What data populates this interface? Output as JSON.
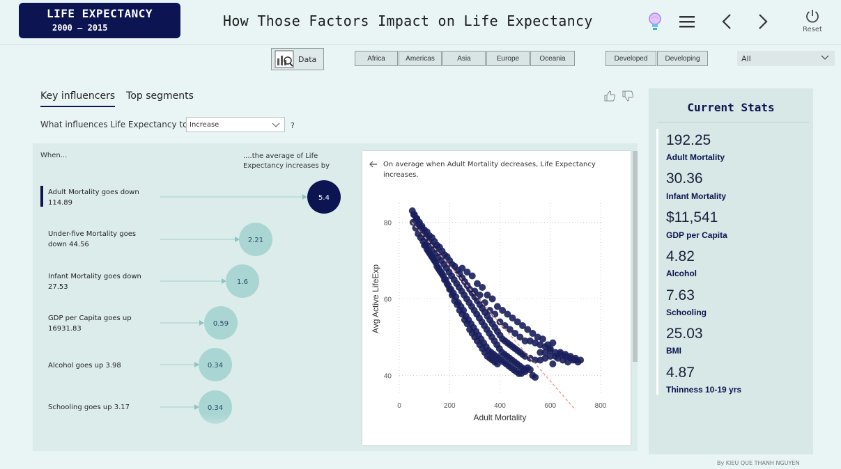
{
  "header": {
    "logo_title": "LIFE EXPECTANCY",
    "logo_years": "2000 – 2015",
    "title": "How Those Factors Impact on Life Expectancy",
    "reset_label": "Reset"
  },
  "filters": {
    "data_label": "Data",
    "regions": [
      "Africa",
      "Americas",
      "Asia",
      "Europe",
      "Oceania"
    ],
    "status": [
      "Developed",
      "Developing"
    ],
    "dropdown_value": "All"
  },
  "influencers": {
    "tabs": [
      "Key influencers",
      "Top segments"
    ],
    "question": "What influences Life Expectancy to",
    "question_value": "Increase",
    "question_mark": "?",
    "col_when": "When...",
    "col_avg": "....the average of Life Expectancy increases by",
    "items": [
      {
        "label": "Adult Mortality goes down 114.89",
        "value": "5.4"
      },
      {
        "label": "Under-five Mortality goes down 44.56",
        "value": "2.21"
      },
      {
        "label": "Infant Mortality goes down 27.53",
        "value": "1.6"
      },
      {
        "label": "GDP per Capita goes up 16931.83",
        "value": "0.59"
      },
      {
        "label": "Alcohol goes up 3.98",
        "value": "0.34"
      },
      {
        "label": "Schooling goes up 3.17",
        "value": "0.34"
      }
    ],
    "chart_desc": "On average when Adult Mortality decreases, Life Expectancy increases."
  },
  "chart_data": {
    "type": "scatter",
    "xlabel": "Adult Mortality",
    "ylabel": "Avg Active LifeExp",
    "xlim": [
      0,
      800
    ],
    "ylim": [
      35,
      85
    ],
    "xticks": [
      0,
      200,
      400,
      600,
      800
    ],
    "yticks": [
      40,
      60,
      80
    ],
    "grid": true,
    "trend": [
      [
        50,
        80
      ],
      [
        700,
        31
      ]
    ],
    "points": [
      [
        52,
        83
      ],
      [
        60,
        82
      ],
      [
        70,
        81
      ],
      [
        80,
        80
      ],
      [
        90,
        79
      ],
      [
        100,
        78
      ],
      [
        110,
        77.5
      ],
      [
        120,
        76.5
      ],
      [
        130,
        76
      ],
      [
        140,
        75
      ],
      [
        150,
        74
      ],
      [
        160,
        73.5
      ],
      [
        170,
        72.5
      ],
      [
        180,
        71.5
      ],
      [
        190,
        71
      ],
      [
        200,
        70
      ],
      [
        210,
        69
      ],
      [
        220,
        68.5
      ],
      [
        230,
        67.5
      ],
      [
        240,
        66.5
      ],
      [
        250,
        65.5
      ],
      [
        260,
        64.5
      ],
      [
        270,
        63.5
      ],
      [
        280,
        62.5
      ],
      [
        290,
        61.5
      ],
      [
        300,
        60.5
      ],
      [
        310,
        59.5
      ],
      [
        320,
        58.5
      ],
      [
        330,
        57.5
      ],
      [
        340,
        56.5
      ],
      [
        350,
        55.5
      ],
      [
        360,
        54.5
      ],
      [
        370,
        53.5
      ],
      [
        380,
        52.5
      ],
      [
        390,
        51.5
      ],
      [
        400,
        50.5
      ],
      [
        410,
        49.5
      ],
      [
        420,
        49
      ],
      [
        430,
        48.5
      ],
      [
        440,
        48
      ],
      [
        450,
        47.5
      ],
      [
        460,
        47
      ],
      [
        470,
        46.5
      ],
      [
        480,
        46
      ],
      [
        490,
        45.5
      ],
      [
        500,
        45
      ],
      [
        520,
        44.5
      ],
      [
        540,
        44
      ],
      [
        560,
        44
      ],
      [
        580,
        44.5
      ],
      [
        600,
        45
      ],
      [
        620,
        45
      ],
      [
        640,
        45.5
      ],
      [
        660,
        45
      ],
      [
        680,
        44.5
      ],
      [
        700,
        44
      ],
      [
        55,
        80
      ],
      [
        65,
        78.5
      ],
      [
        75,
        77
      ],
      [
        85,
        76
      ],
      [
        95,
        75
      ],
      [
        105,
        74
      ],
      [
        115,
        72.5
      ],
      [
        125,
        71.5
      ],
      [
        135,
        70.5
      ],
      [
        145,
        69.5
      ],
      [
        155,
        68
      ],
      [
        165,
        67
      ],
      [
        175,
        66
      ],
      [
        185,
        65
      ],
      [
        195,
        63.5
      ],
      [
        205,
        62.5
      ],
      [
        215,
        61.5
      ],
      [
        225,
        60.5
      ],
      [
        235,
        59
      ],
      [
        245,
        58
      ],
      [
        255,
        57
      ],
      [
        265,
        55.5
      ],
      [
        275,
        54.5
      ],
      [
        285,
        53.5
      ],
      [
        295,
        52.5
      ],
      [
        305,
        51.5
      ],
      [
        315,
        50.5
      ],
      [
        325,
        49.5
      ],
      [
        335,
        48.5
      ],
      [
        345,
        47.5
      ],
      [
        355,
        46.5
      ],
      [
        365,
        46
      ],
      [
        375,
        45.5
      ],
      [
        385,
        45
      ],
      [
        395,
        44.5
      ],
      [
        405,
        44
      ],
      [
        415,
        43.5
      ],
      [
        425,
        43
      ],
      [
        435,
        42.5
      ],
      [
        445,
        42
      ],
      [
        455,
        41.5
      ],
      [
        465,
        41
      ],
      [
        475,
        40.5
      ],
      [
        485,
        40.5
      ],
      [
        500,
        41
      ],
      [
        510,
        42
      ],
      [
        520,
        41.5
      ],
      [
        530,
        40
      ],
      [
        540,
        39.5
      ],
      [
        58,
        82
      ],
      [
        68,
        81
      ],
      [
        78,
        79.5
      ],
      [
        88,
        78.5
      ],
      [
        98,
        77
      ],
      [
        108,
        76
      ],
      [
        118,
        75
      ],
      [
        128,
        74
      ],
      [
        138,
        73
      ],
      [
        148,
        72
      ],
      [
        158,
        71
      ],
      [
        168,
        70
      ],
      [
        178,
        69
      ],
      [
        188,
        68
      ],
      [
        198,
        67
      ],
      [
        208,
        66
      ],
      [
        218,
        65
      ],
      [
        228,
        64
      ],
      [
        238,
        63
      ],
      [
        248,
        62
      ],
      [
        258,
        61
      ],
      [
        268,
        60
      ],
      [
        278,
        59
      ],
      [
        288,
        58
      ],
      [
        298,
        57
      ],
      [
        308,
        56
      ],
      [
        318,
        55
      ],
      [
        328,
        54
      ],
      [
        338,
        53
      ],
      [
        348,
        52
      ],
      [
        358,
        51
      ],
      [
        368,
        50
      ],
      [
        378,
        49
      ],
      [
        388,
        48
      ],
      [
        398,
        47
      ],
      [
        408,
        46
      ],
      [
        418,
        45.5
      ],
      [
        428,
        45
      ],
      [
        438,
        44.5
      ],
      [
        448,
        44
      ],
      [
        458,
        43.5
      ],
      [
        468,
        43
      ],
      [
        478,
        42.5
      ],
      [
        488,
        42
      ],
      [
        498,
        41.5
      ],
      [
        300,
        62
      ],
      [
        320,
        61
      ],
      [
        340,
        59
      ],
      [
        360,
        57
      ],
      [
        380,
        56
      ],
      [
        400,
        54
      ],
      [
        420,
        53
      ],
      [
        440,
        52
      ],
      [
        460,
        51
      ],
      [
        480,
        50
      ],
      [
        500,
        49
      ],
      [
        520,
        49
      ],
      [
        540,
        48.5
      ],
      [
        560,
        48
      ],
      [
        580,
        47.5
      ],
      [
        600,
        47
      ],
      [
        560,
        46
      ],
      [
        580,
        46
      ],
      [
        600,
        46.5
      ],
      [
        620,
        46
      ],
      [
        640,
        46
      ],
      [
        660,
        45.5
      ],
      [
        680,
        45
      ],
      [
        700,
        44.5
      ],
      [
        720,
        44
      ],
      [
        710,
        43.5
      ],
      [
        690,
        44
      ],
      [
        670,
        43.5
      ],
      [
        650,
        44
      ],
      [
        630,
        44.5
      ],
      [
        610,
        43
      ],
      [
        250,
        68
      ],
      [
        270,
        67
      ],
      [
        290,
        66
      ],
      [
        310,
        64
      ],
      [
        330,
        63
      ],
      [
        350,
        61
      ],
      [
        370,
        60
      ],
      [
        390,
        58
      ],
      [
        410,
        57
      ],
      [
        430,
        56
      ],
      [
        450,
        55
      ],
      [
        470,
        54
      ],
      [
        490,
        53
      ],
      [
        510,
        52
      ],
      [
        530,
        51
      ],
      [
        550,
        50
      ],
      [
        570,
        49.5
      ],
      [
        590,
        48
      ],
      [
        610,
        48.5
      ],
      [
        100,
        74
      ],
      [
        110,
        73
      ],
      [
        120,
        72
      ],
      [
        130,
        71
      ],
      [
        140,
        70
      ],
      [
        150,
        68.5
      ],
      [
        160,
        67.5
      ],
      [
        170,
        66.5
      ],
      [
        180,
        65
      ],
      [
        190,
        64
      ],
      [
        200,
        62.5
      ],
      [
        210,
        61
      ],
      [
        220,
        59.5
      ],
      [
        230,
        58.5
      ],
      [
        240,
        57
      ],
      [
        250,
        56
      ],
      [
        260,
        54.5
      ],
      [
        270,
        53.5
      ],
      [
        280,
        52
      ],
      [
        290,
        51
      ],
      [
        300,
        50
      ],
      [
        310,
        49
      ],
      [
        320,
        48
      ],
      [
        330,
        47
      ],
      [
        340,
        46
      ],
      [
        350,
        45
      ],
      [
        360,
        44.5
      ],
      [
        370,
        44
      ],
      [
        380,
        43.5
      ],
      [
        390,
        43
      ]
    ]
  },
  "stats": {
    "title": "Current Stats",
    "items": [
      {
        "value": "192.25",
        "label": "Adult Mortality"
      },
      {
        "value": "30.36",
        "label": "Infant Mortality"
      },
      {
        "value": "$11,541",
        "label": "GDP per Capita"
      },
      {
        "value": "4.82",
        "label": "Alcohol"
      },
      {
        "value": "7.63",
        "label": "Schooling"
      },
      {
        "value": "25.03",
        "label": "BMI"
      },
      {
        "value": "4.87",
        "label": "Thinness 10-19 yrs"
      }
    ]
  },
  "footer": "By KIEU QUE THANH NGUYEN",
  "colors": {
    "navy": "#0c1451",
    "bubble": "#a9d5d3",
    "trend": "#f0a08a",
    "background": "#e9f4f4"
  }
}
